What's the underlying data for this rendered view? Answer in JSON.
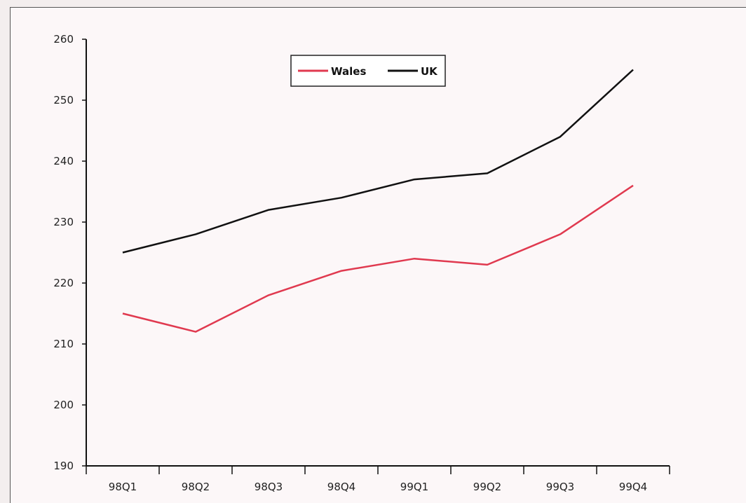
{
  "chart_data": {
    "type": "line",
    "categories": [
      "98Q1",
      "98Q2",
      "98Q3",
      "98Q4",
      "99Q1",
      "99Q2",
      "99Q3",
      "99Q4"
    ],
    "series": [
      {
        "name": "Wales",
        "color": "#e0394f",
        "values": [
          215,
          212,
          218,
          222,
          224,
          223,
          228,
          236
        ]
      },
      {
        "name": "UK",
        "color": "#111111",
        "values": [
          225,
          228,
          232,
          234,
          237,
          238,
          244,
          255
        ]
      }
    ],
    "y_ticks": [
      "260",
      "250",
      "240",
      "230",
      "220",
      "210",
      "200",
      "190"
    ],
    "ylim": [
      190,
      260
    ],
    "legend": "top-center",
    "grid": false
  }
}
